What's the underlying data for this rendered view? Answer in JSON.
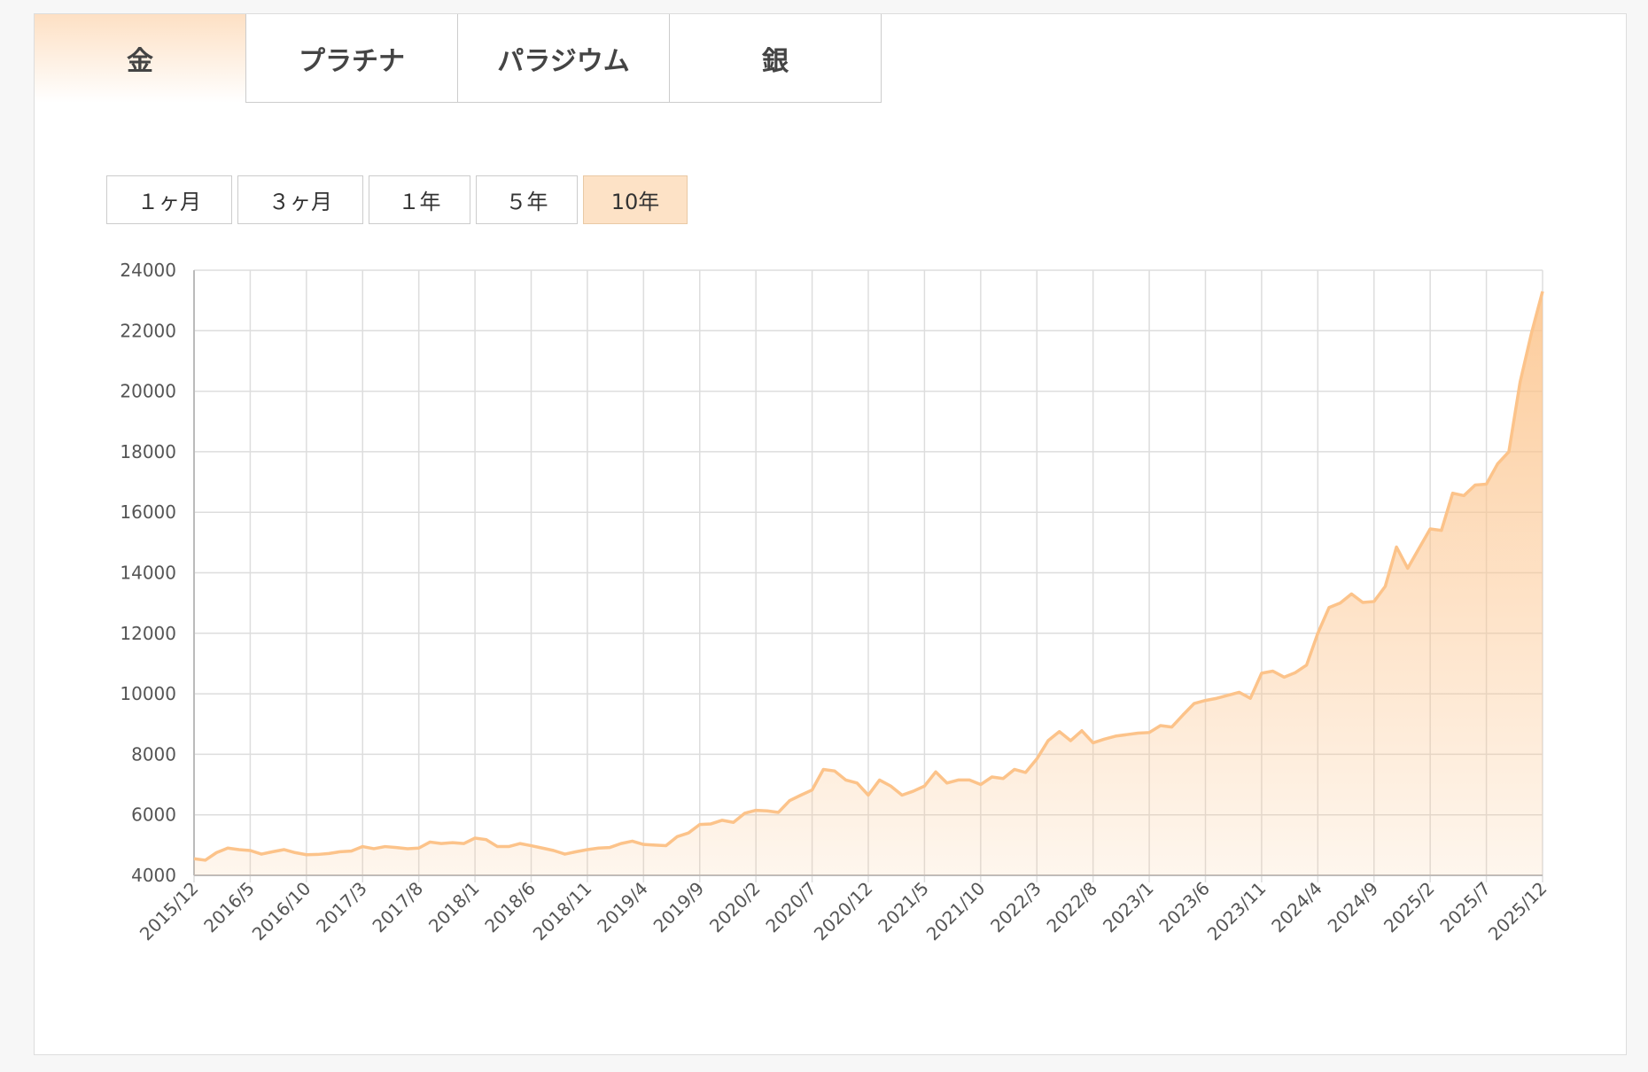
{
  "tabs": [
    "金",
    "プラチナ",
    "パラジウム",
    "銀"
  ],
  "periods": [
    "１ヶ月",
    "３ヶ月",
    "１年",
    "５年",
    "10年"
  ],
  "chart_data": {
    "type": "area",
    "categories": [
      "2015/12",
      null,
      null,
      null,
      null,
      "2016/5",
      null,
      null,
      null,
      null,
      "2016/10",
      null,
      null,
      null,
      null,
      "2017/3",
      null,
      null,
      null,
      null,
      "2017/8",
      null,
      null,
      null,
      null,
      "2018/1",
      null,
      null,
      null,
      null,
      "2018/6",
      null,
      null,
      null,
      null,
      "2018/11",
      null,
      null,
      null,
      null,
      "2019/4",
      null,
      null,
      null,
      null,
      "2019/9",
      null,
      null,
      null,
      null,
      "2020/2",
      null,
      null,
      null,
      null,
      "2020/7",
      null,
      null,
      null,
      null,
      "2020/12",
      null,
      null,
      null,
      null,
      "2021/5",
      null,
      null,
      null,
      null,
      "2021/10",
      null,
      null,
      null,
      null,
      "2022/3",
      null,
      null,
      null,
      null,
      "2022/8",
      null,
      null,
      null,
      null,
      "2023/1",
      null,
      null,
      null,
      null,
      "2023/6",
      null,
      null,
      null,
      null,
      "2023/11",
      null,
      null,
      null,
      null,
      "2024/4",
      null,
      null,
      null,
      null,
      "2024/9",
      null,
      null,
      null,
      null,
      "2025/2",
      null,
      null,
      null,
      null,
      "2025/7",
      null,
      null,
      null,
      null,
      "2025/12"
    ],
    "series": [
      {
        "color": "#fcc38a",
        "values": [
          4550,
          4500,
          4750,
          4900,
          4850,
          4820,
          4700,
          4780,
          4850,
          4750,
          4680,
          4690,
          4720,
          4780,
          4800,
          4950,
          4880,
          4950,
          4920,
          4880,
          4900,
          5100,
          5050,
          5080,
          5050,
          5230,
          5180,
          4950,
          4950,
          5050,
          4980,
          4900,
          4820,
          4700,
          4780,
          4850,
          4900,
          4920,
          5050,
          5130,
          5020,
          5000,
          4980,
          5280,
          5400,
          5680,
          5700,
          5820,
          5750,
          6050,
          6150,
          6130,
          6080,
          6470,
          6650,
          6820,
          7500,
          7450,
          7150,
          7050,
          6650,
          7150,
          6950,
          6650,
          6780,
          6950,
          7420,
          7050,
          7150,
          7150,
          7000,
          7250,
          7200,
          7500,
          7400,
          7850,
          8450,
          8750,
          8450,
          8780,
          8380,
          8500,
          8600,
          8650,
          8700,
          8720,
          8950,
          8900,
          9300,
          9680,
          9780,
          9850,
          9950,
          10050,
          9850,
          10680,
          10750,
          10550,
          10700,
          10950,
          12000,
          12850,
          13000,
          13300,
          13020,
          13050,
          13550,
          14850,
          14150,
          14800,
          15450,
          15400,
          16630,
          16550,
          16900,
          16930,
          17600,
          18000,
          20300,
          21900,
          23300
        ]
      }
    ],
    "ylim": [
      4000,
      24000
    ],
    "yticks": [
      4000,
      6000,
      8000,
      10000,
      12000,
      14000,
      16000,
      18000,
      20000,
      22000,
      24000
    ],
    "grid": true
  }
}
